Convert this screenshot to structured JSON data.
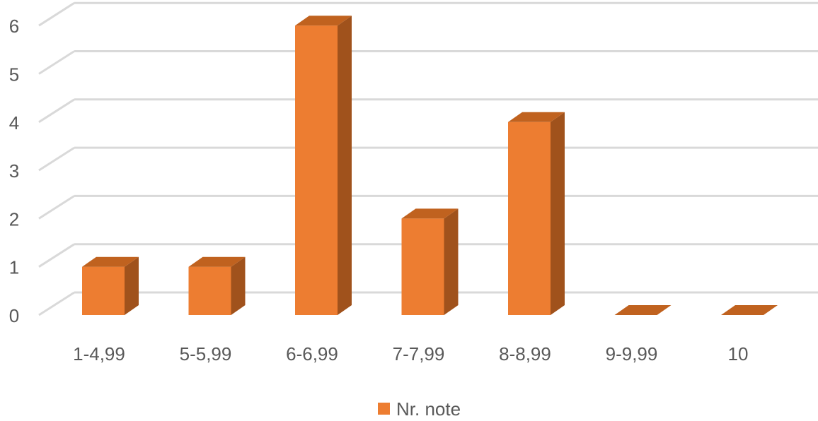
{
  "chart_data": {
    "type": "bar",
    "title": "",
    "xlabel": "",
    "ylabel": "",
    "categories": [
      "1-4,99",
      "5-5,99",
      "6-6,99",
      "7-7,99",
      "8-8,99",
      "9-9,99",
      "10"
    ],
    "series": [
      {
        "name": "Nr. note",
        "values": [
          1,
          1,
          6,
          2,
          4,
          0,
          0
        ],
        "color": "#ED7D31"
      }
    ],
    "yticks": [
      0,
      1,
      2,
      3,
      4,
      5,
      6
    ],
    "ylim": [
      0,
      6.5
    ],
    "grid": true,
    "legend_position": "bottom",
    "colors": {
      "front": "#ED7D31",
      "side": "#A0521C",
      "top": "#C0621F",
      "grid": "#D9D9D9",
      "text": "#595959"
    }
  }
}
